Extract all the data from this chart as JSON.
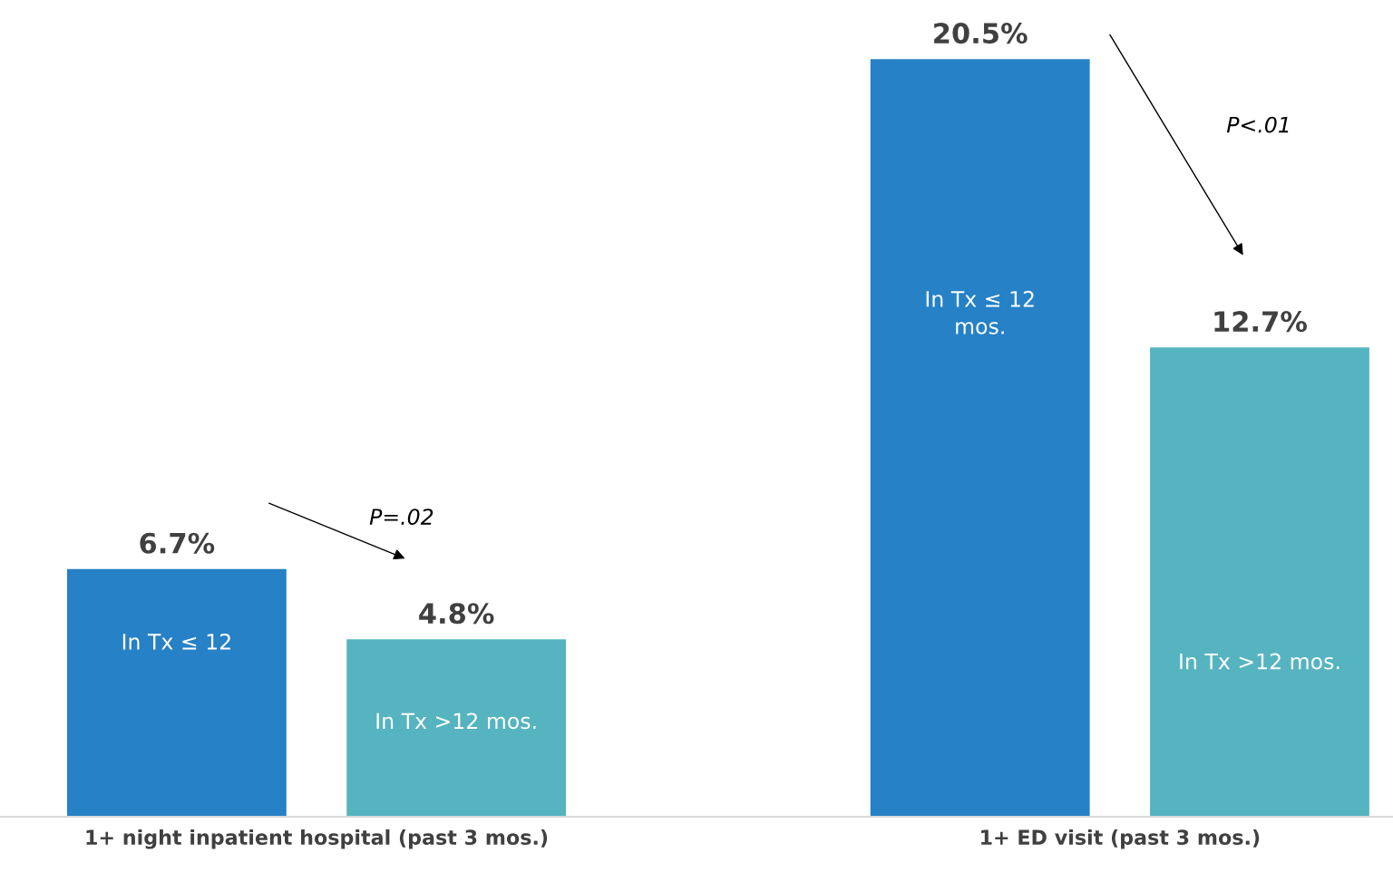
{
  "chart_data": {
    "type": "bar",
    "categories": [
      "1+ night inpatient hospital (past 3 mos.)",
      "1+ ED visit (past 3 mos.)"
    ],
    "series": [
      {
        "color": "#2681c6",
        "values": [
          6.7,
          20.5
        ],
        "value_labels": [
          "6.7%",
          "20.5%"
        ]
      },
      {
        "color": "#56b4c0",
        "values": [
          4.8,
          12.7
        ],
        "value_labels": [
          "4.8%",
          "12.7%"
        ]
      }
    ],
    "tick_labels": "x",
    "grid": false,
    "annotations": [
      "In Tx ≤ 12",
      "In Tx >12 mos.",
      "In Tx ≤ 12\nmos.",
      "In Tx >12 mos.",
      "P=.02",
      "P<.01"
    ]
  }
}
